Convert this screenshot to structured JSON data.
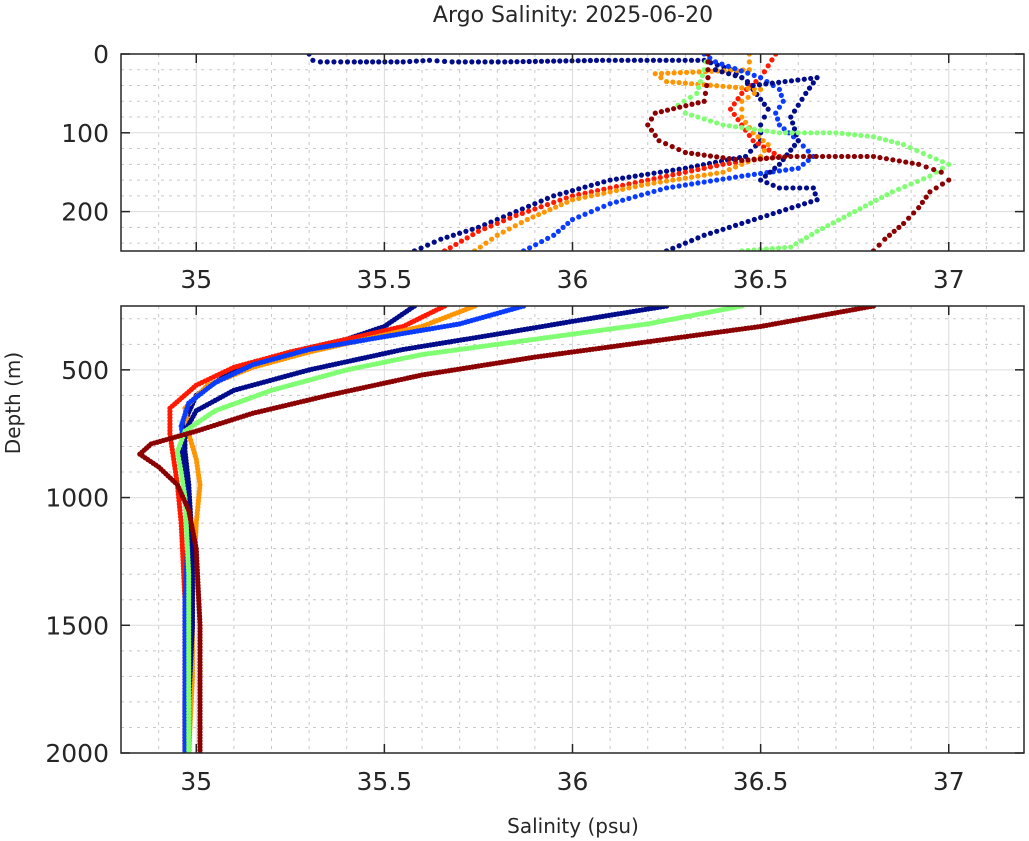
{
  "chart_data": {
    "type": "scatter",
    "title": "Argo Salinity: 2025-06-20",
    "xlabel": "Salinity (psu)",
    "ylabel": "Depth (m)",
    "grid": true,
    "minor_grid": true,
    "legend": "none",
    "panels": [
      {
        "name": "upper",
        "xlim": [
          34.8,
          37.2
        ],
        "ylim": [
          0,
          250
        ],
        "y_reversed": true,
        "xticks": [
          35,
          35.5,
          36,
          36.5,
          37
        ],
        "xtick_labels": [
          "35",
          "35.5",
          "36",
          "36.5",
          "37"
        ],
        "yticks": [
          0,
          100,
          200
        ],
        "ytick_labels": [
          "0",
          "100",
          "200"
        ]
      },
      {
        "name": "lower",
        "xlim": [
          34.8,
          37.2
        ],
        "ylim": [
          250,
          2000
        ],
        "y_reversed": true,
        "xticks": [
          35,
          35.5,
          36,
          36.5,
          37
        ],
        "xtick_labels": [
          "35",
          "35.5",
          "36",
          "36.5",
          "37"
        ],
        "yticks": [
          500,
          1000,
          1500,
          2000
        ],
        "ytick_labels": [
          "500",
          "1000",
          "1500",
          "2000"
        ]
      }
    ],
    "series": [
      {
        "name": "profile-navy-a",
        "color": "#000c8a",
        "points": [
          [
            35.3,
            0
          ],
          [
            35.31,
            8
          ],
          [
            35.33,
            10
          ],
          [
            35.42,
            10
          ],
          [
            35.55,
            10
          ],
          [
            35.62,
            8
          ],
          [
            35.68,
            10
          ],
          [
            35.75,
            10
          ],
          [
            35.82,
            10
          ],
          [
            36.08,
            8
          ],
          [
            36.35,
            8
          ],
          [
            36.42,
            20
          ],
          [
            36.45,
            30
          ],
          [
            36.48,
            45
          ],
          [
            36.52,
            70
          ],
          [
            36.5,
            90
          ],
          [
            36.5,
            110
          ],
          [
            36.46,
            130
          ],
          [
            36.3,
            145
          ],
          [
            36.1,
            160
          ],
          [
            35.95,
            180
          ],
          [
            35.85,
            200
          ],
          [
            35.75,
            220
          ],
          [
            35.65,
            235
          ],
          [
            35.58,
            250
          ],
          [
            35.58,
            250
          ],
          [
            35.5,
            330
          ],
          [
            35.4,
            380
          ],
          [
            35.25,
            430
          ],
          [
            35.1,
            500
          ],
          [
            35.0,
            600
          ],
          [
            34.97,
            700
          ],
          [
            34.96,
            800
          ],
          [
            34.97,
            900
          ],
          [
            34.98,
            1000
          ],
          [
            34.99,
            1200
          ],
          [
            34.98,
            1500
          ],
          [
            34.97,
            1800
          ],
          [
            34.97,
            2000
          ]
        ]
      },
      {
        "name": "profile-red",
        "color": "#ff1a00",
        "points": [
          [
            36.54,
            0
          ],
          [
            36.52,
            15
          ],
          [
            36.5,
            30
          ],
          [
            36.45,
            50
          ],
          [
            36.42,
            70
          ],
          [
            36.45,
            90
          ],
          [
            36.48,
            110
          ],
          [
            36.55,
            130
          ],
          [
            36.4,
            140
          ],
          [
            36.2,
            160
          ],
          [
            36.0,
            180
          ],
          [
            35.85,
            205
          ],
          [
            35.75,
            225
          ],
          [
            35.66,
            250
          ],
          [
            35.66,
            250
          ],
          [
            35.55,
            330
          ],
          [
            35.4,
            380
          ],
          [
            35.25,
            430
          ],
          [
            35.1,
            490
          ],
          [
            35.0,
            560
          ],
          [
            34.93,
            650
          ],
          [
            34.93,
            750
          ],
          [
            34.94,
            850
          ],
          [
            34.95,
            950
          ],
          [
            34.96,
            1100
          ],
          [
            34.97,
            1400
          ],
          [
            34.97,
            1700
          ],
          [
            34.97,
            2000
          ]
        ]
      },
      {
        "name": "profile-orange",
        "color": "#ff9500",
        "points": [
          [
            36.47,
            0
          ],
          [
            36.47,
            20
          ],
          [
            36.22,
            25
          ],
          [
            36.25,
            35
          ],
          [
            36.5,
            45
          ],
          [
            36.45,
            60
          ],
          [
            36.45,
            80
          ],
          [
            36.48,
            100
          ],
          [
            36.52,
            115
          ],
          [
            36.5,
            130
          ],
          [
            36.4,
            150
          ],
          [
            36.2,
            165
          ],
          [
            36.0,
            185
          ],
          [
            35.88,
            210
          ],
          [
            35.8,
            230
          ],
          [
            35.74,
            250
          ],
          [
            35.74,
            250
          ],
          [
            35.6,
            330
          ],
          [
            35.45,
            380
          ],
          [
            35.3,
            430
          ],
          [
            35.15,
            490
          ],
          [
            35.03,
            560
          ],
          [
            34.97,
            650
          ],
          [
            34.98,
            750
          ],
          [
            35.0,
            850
          ],
          [
            35.01,
            950
          ],
          [
            35.0,
            1100
          ],
          [
            34.99,
            1400
          ],
          [
            34.99,
            1700
          ],
          [
            34.98,
            2000
          ]
        ]
      },
      {
        "name": "profile-blue",
        "color": "#0a3cff",
        "points": [
          [
            36.35,
            0
          ],
          [
            36.38,
            10
          ],
          [
            36.5,
            30
          ],
          [
            36.55,
            45
          ],
          [
            36.56,
            60
          ],
          [
            36.54,
            75
          ],
          [
            36.55,
            90
          ],
          [
            36.6,
            110
          ],
          [
            36.64,
            130
          ],
          [
            36.6,
            145
          ],
          [
            36.45,
            155
          ],
          [
            36.25,
            170
          ],
          [
            36.1,
            190
          ],
          [
            36.0,
            210
          ],
          [
            35.95,
            230
          ],
          [
            35.87,
            250
          ],
          [
            35.87,
            250
          ],
          [
            35.7,
            320
          ],
          [
            35.5,
            370
          ],
          [
            35.3,
            420
          ],
          [
            35.15,
            480
          ],
          [
            35.05,
            550
          ],
          [
            34.98,
            630
          ],
          [
            34.96,
            720
          ],
          [
            34.97,
            820
          ],
          [
            34.98,
            950
          ],
          [
            34.98,
            1100
          ],
          [
            34.97,
            1400
          ],
          [
            34.97,
            1700
          ],
          [
            34.97,
            2000
          ]
        ]
      },
      {
        "name": "profile-navy-b",
        "color": "#000c8a",
        "points": [
          [
            36.38,
            20
          ],
          [
            36.45,
            30
          ],
          [
            36.48,
            40
          ],
          [
            36.65,
            30
          ],
          [
            36.62,
            50
          ],
          [
            36.58,
            80
          ],
          [
            36.6,
            110
          ],
          [
            36.55,
            140
          ],
          [
            36.5,
            160
          ],
          [
            36.55,
            170
          ],
          [
            36.64,
            170
          ],
          [
            36.65,
            185
          ],
          [
            36.55,
            200
          ],
          [
            36.45,
            215
          ],
          [
            36.35,
            230
          ],
          [
            36.25,
            250
          ],
          [
            36.25,
            250
          ],
          [
            36.0,
            310
          ],
          [
            35.8,
            360
          ],
          [
            35.55,
            420
          ],
          [
            35.3,
            500
          ],
          [
            35.1,
            580
          ],
          [
            35.0,
            660
          ],
          [
            34.97,
            740
          ],
          [
            34.97,
            820
          ],
          [
            34.98,
            950
          ],
          [
            34.99,
            1200
          ],
          [
            34.99,
            1500
          ],
          [
            34.98,
            1800
          ],
          [
            34.98,
            2000
          ]
        ]
      },
      {
        "name": "profile-lightgreen",
        "color": "#80ff73",
        "points": [
          [
            36.36,
            0
          ],
          [
            36.35,
            20
          ],
          [
            36.33,
            50
          ],
          [
            36.28,
            65
          ],
          [
            36.3,
            75
          ],
          [
            36.4,
            90
          ],
          [
            36.55,
            100
          ],
          [
            36.7,
            100
          ],
          [
            36.8,
            105
          ],
          [
            36.88,
            115
          ],
          [
            36.95,
            130
          ],
          [
            37.0,
            140
          ],
          [
            36.95,
            155
          ],
          [
            36.85,
            175
          ],
          [
            36.75,
            200
          ],
          [
            36.65,
            225
          ],
          [
            36.58,
            245
          ],
          [
            36.45,
            250
          ],
          [
            36.45,
            250
          ],
          [
            36.2,
            320
          ],
          [
            35.9,
            380
          ],
          [
            35.6,
            440
          ],
          [
            35.4,
            500
          ],
          [
            35.2,
            580
          ],
          [
            35.05,
            660
          ],
          [
            34.97,
            740
          ],
          [
            34.95,
            820
          ],
          [
            34.96,
            900
          ],
          [
            34.97,
            1000
          ],
          [
            34.98,
            1300
          ],
          [
            34.98,
            1700
          ],
          [
            34.98,
            2000
          ]
        ]
      },
      {
        "name": "profile-darkred",
        "color": "#8b0000",
        "points": [
          [
            36.36,
            0
          ],
          [
            36.36,
            30
          ],
          [
            36.35,
            60
          ],
          [
            36.22,
            75
          ],
          [
            36.2,
            90
          ],
          [
            36.23,
            110
          ],
          [
            36.3,
            125
          ],
          [
            36.45,
            135
          ],
          [
            36.58,
            130
          ],
          [
            36.8,
            130
          ],
          [
            36.92,
            140
          ],
          [
            36.98,
            150
          ],
          [
            37.0,
            160
          ],
          [
            36.95,
            175
          ],
          [
            36.92,
            195
          ],
          [
            36.88,
            215
          ],
          [
            36.83,
            235
          ],
          [
            36.8,
            250
          ],
          [
            36.8,
            250
          ],
          [
            36.5,
            330
          ],
          [
            36.2,
            390
          ],
          [
            35.9,
            450
          ],
          [
            35.6,
            520
          ],
          [
            35.35,
            600
          ],
          [
            35.15,
            670
          ],
          [
            35.0,
            740
          ],
          [
            34.88,
            790
          ],
          [
            34.85,
            830
          ],
          [
            34.9,
            880
          ],
          [
            34.95,
            950
          ],
          [
            34.98,
            1050
          ],
          [
            35.0,
            1200
          ],
          [
            35.01,
            1500
          ],
          [
            35.01,
            1800
          ],
          [
            35.01,
            2000
          ]
        ]
      }
    ]
  }
}
